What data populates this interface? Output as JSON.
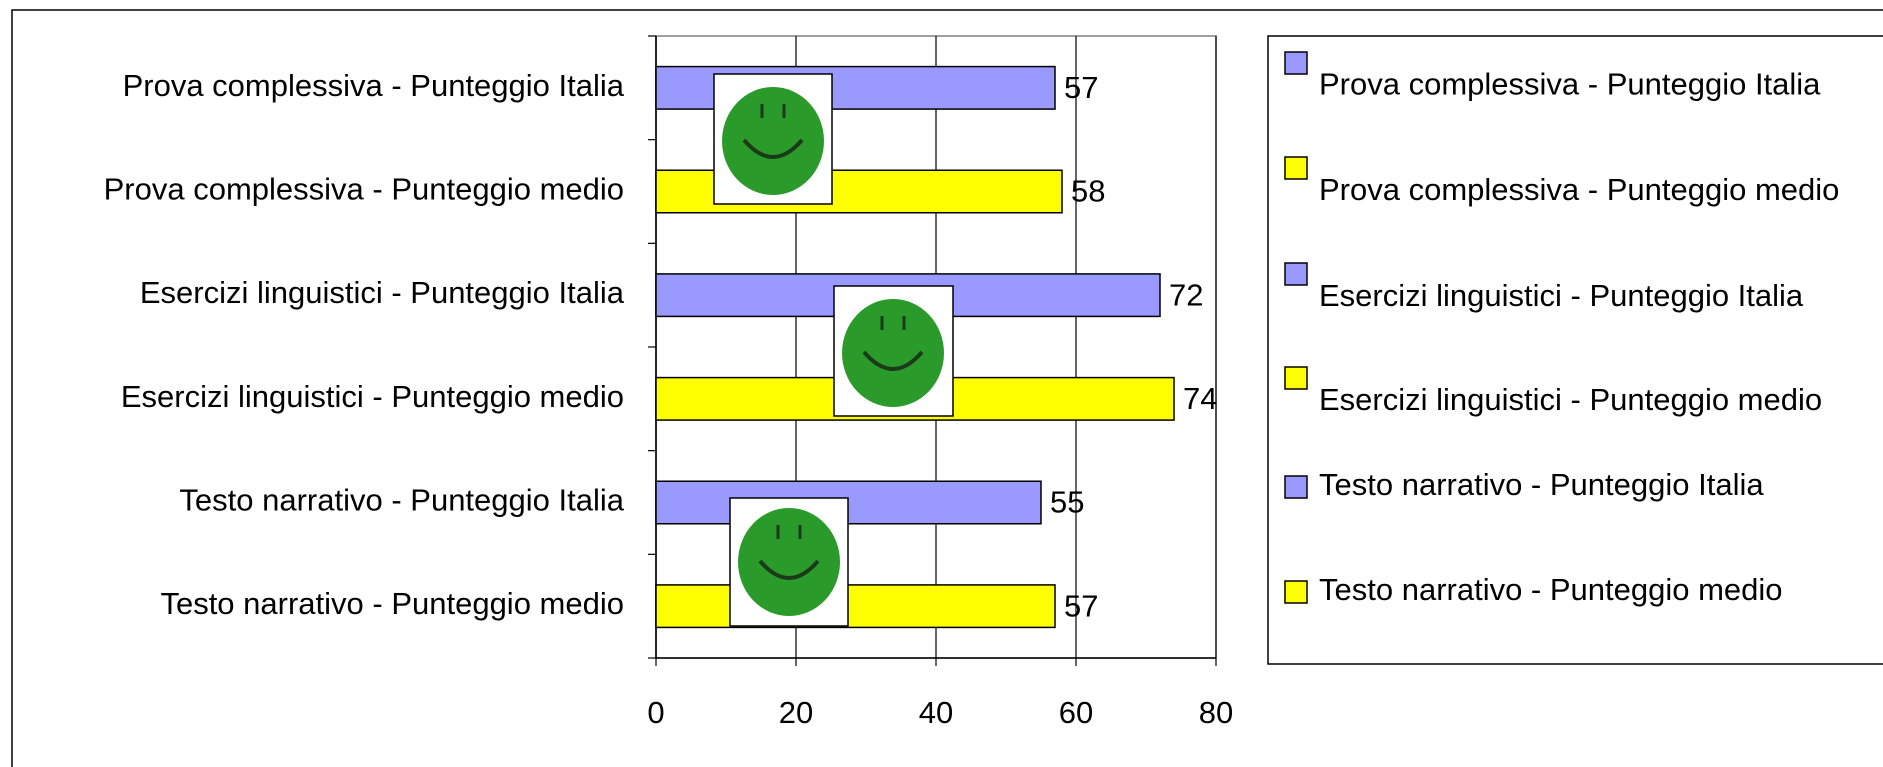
{
  "chart_data": {
    "type": "bar",
    "orientation": "horizontal",
    "categories": [
      "Prova complessiva - Punteggio Italia",
      "Prova complessiva - Punteggio medio",
      "Esercizi linguistici - Punteggio Italia",
      "Esercizi linguistici - Punteggio medio",
      "Testo narrativo - Punteggio Italia",
      "Testo narrativo - Punteggio medio"
    ],
    "values": [
      57,
      58,
      72,
      74,
      55,
      57
    ],
    "colors": [
      "#9999ff",
      "#ffff00",
      "#9999ff",
      "#ffff00",
      "#9999ff",
      "#ffff00"
    ],
    "xlim": [
      0,
      80
    ],
    "xticks": [
      0,
      20,
      40,
      60,
      80
    ],
    "grid": true,
    "legend": "right"
  }
}
